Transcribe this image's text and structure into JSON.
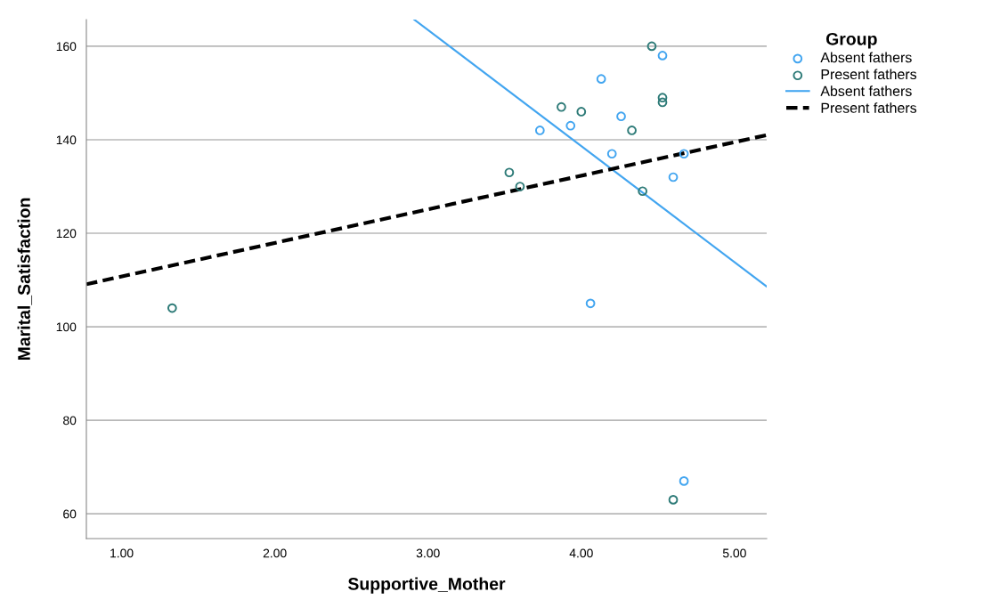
{
  "chart_data": {
    "type": "scatter",
    "xlabel": "Supportive_Mother",
    "ylabel": "Marital_Satisfaction",
    "legend_title": "Group",
    "legend": "top right",
    "grid": "y",
    "marker": "circle",
    "xlim": [
      0.77,
      5.21
    ],
    "ylim": [
      54.7,
      165.7
    ],
    "xticks": [
      {
        "value": 1,
        "label": "1.00"
      },
      {
        "value": 2,
        "label": "2.00"
      },
      {
        "value": 3,
        "label": "3.00"
      },
      {
        "value": 4,
        "label": "4.00"
      },
      {
        "value": 5,
        "label": "5.00"
      }
    ],
    "yticks": [
      60,
      80,
      100,
      120,
      140,
      160
    ],
    "series": [
      {
        "name": "Absent fathers",
        "color": "#42a5f0",
        "x": [
          4.53,
          4.13,
          4.26,
          3.93,
          3.73,
          4.2,
          4.67,
          4.6,
          4.06,
          4.67
        ],
        "values": [
          158,
          153,
          145,
          143,
          142,
          137,
          137,
          132,
          105,
          67
        ]
      },
      {
        "name": "Present fathers",
        "color": "#2e7b78",
        "x": [
          4.46,
          4.53,
          4.53,
          3.87,
          4.0,
          4.33,
          3.53,
          3.6,
          4.4,
          1.33,
          4.6
        ],
        "values": [
          160,
          149,
          148,
          147,
          146,
          142,
          133,
          130,
          129,
          104,
          63
        ]
      },
      {
        "name": "Absent fathers",
        "type": "line",
        "color": "#42a5f0",
        "line_style": "solid",
        "marker": "none",
        "x": [
          2.91,
          5.21
        ],
        "values": [
          165.7,
          108.6
        ]
      },
      {
        "name": "Present fathers",
        "type": "line",
        "color": "#000000",
        "line_style": "dashed",
        "marker": "none",
        "x": [
          0.77,
          5.21
        ],
        "values": [
          109.1,
          141.0
        ]
      }
    ]
  }
}
